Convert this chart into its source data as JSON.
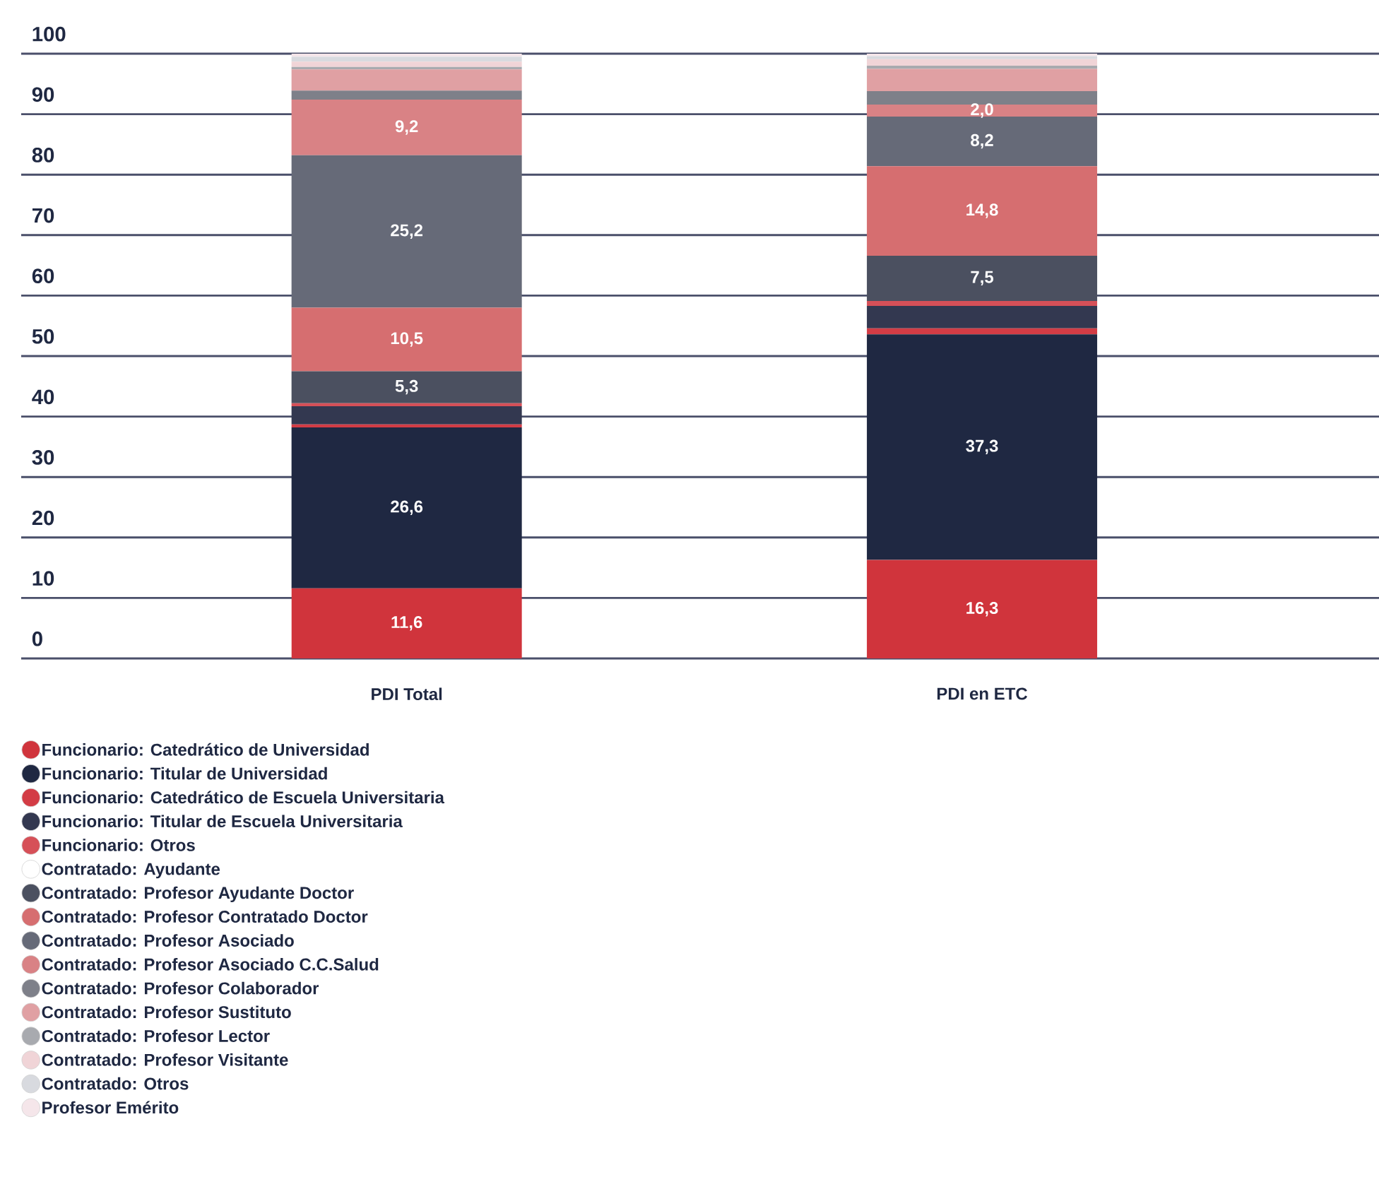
{
  "chart_data": {
    "type": "bar",
    "stacked": true,
    "categories": [
      "PDI Total",
      "PDI en ETC"
    ],
    "ylim": [
      0,
      100
    ],
    "yticks": [
      0,
      10,
      20,
      30,
      40,
      50,
      60,
      70,
      80,
      90,
      100
    ],
    "grid": "y",
    "legend": "bottom",
    "series": [
      {
        "name": "Funcionario: Catedrático de Universidad",
        "color": "#d0343c",
        "values": [
          11.6,
          16.3
        ],
        "value_labels": [
          "11,6",
          "16,3"
        ]
      },
      {
        "name": "Funcionario: Titular de Universidad",
        "color": "#1f2842",
        "values": [
          26.6,
          37.3
        ],
        "value_labels": [
          "26,6",
          "37,3"
        ]
      },
      {
        "name": "Funcionario: Catedrático de Escuela Universitaria",
        "color": "#d33c45",
        "values": [
          0.5,
          1.0
        ]
      },
      {
        "name": "Funcionario: Titular de Escuela Universitaria",
        "color": "#333850",
        "values": [
          3.0,
          3.7
        ]
      },
      {
        "name": "Funcionario: Otros",
        "color": "#d65058",
        "values": [
          0.5,
          0.8
        ]
      },
      {
        "name": "Contratado: Ayudante",
        "color": "#ffffff",
        "values": [
          0,
          0
        ]
      },
      {
        "name": "Contratado: Profesor Ayudante Doctor",
        "color": "#4b5060",
        "values": [
          5.3,
          7.5
        ],
        "value_labels": [
          "5,3",
          "7,5"
        ]
      },
      {
        "name": "Contratado: Profesor Contratado Doctor",
        "color": "#d66e70",
        "values": [
          10.5,
          14.8
        ],
        "value_labels": [
          "10,5",
          "14,8"
        ]
      },
      {
        "name": "Contratado: Profesor Asociado",
        "color": "#666a78",
        "values": [
          25.2,
          8.2
        ],
        "value_labels": [
          "25,2",
          "8,2"
        ]
      },
      {
        "name": "Contratado: Profesor Asociado C.C.Salud",
        "color": "#d98285",
        "values": [
          9.2,
          2.0
        ],
        "value_labels": [
          "9,2",
          "2,0"
        ]
      },
      {
        "name": "Contratado: Profesor Colaborador",
        "color": "#7e8089",
        "values": [
          1.5,
          2.2
        ]
      },
      {
        "name": "Contratado: Profesor Sustituto",
        "color": "#e0a0a3",
        "values": [
          3.5,
          3.7
        ]
      },
      {
        "name": "Contratado: Profesor Lector",
        "color": "#a8aaaf",
        "values": [
          0.4,
          0.5
        ]
      },
      {
        "name": "Contratado: Profesor Visitante",
        "color": "#f0d4d7",
        "values": [
          0.9,
          1.1
        ]
      },
      {
        "name": "Contratado: Otros",
        "color": "#d8dadf",
        "values": [
          0.8,
          0.5
        ]
      },
      {
        "name": "Profesor Emérito",
        "color": "#f5e6ea",
        "values": [
          0.5,
          0.4
        ]
      }
    ]
  }
}
